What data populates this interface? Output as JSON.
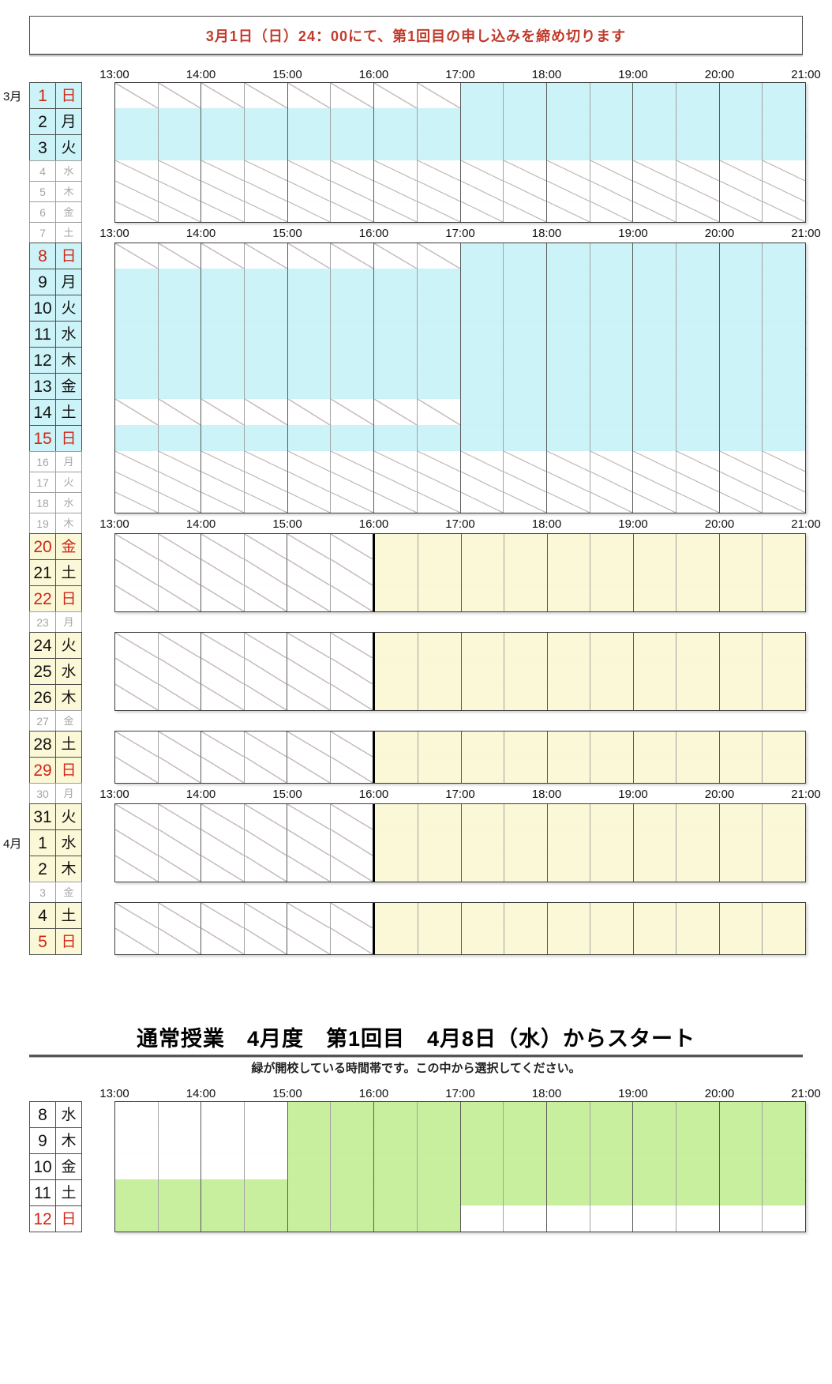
{
  "banner": {
    "text": "3月1日（日）24：00にて、第1回目の申し込みを締め切ります"
  },
  "colors": {
    "banner_red": "#c13a2c",
    "red": "#cf2618",
    "gray": "#a6a6a6",
    "black": "#111111",
    "cyan": "#ccf3f7",
    "yellow": "#faf8d6",
    "green": "#c8ef9d",
    "white": "#ffffff",
    "hatch_line": "#c9bdbd"
  },
  "time_header": {
    "labels": [
      "13:00",
      "14:00",
      "15:00",
      "16:00",
      "17:00",
      "18:00",
      "19:00",
      "20:00",
      "21:00"
    ]
  },
  "top_calendar": {
    "rows": [
      {
        "size": "header",
        "grid": "timeheader"
      },
      {
        "month": "3月",
        "day": "1",
        "weekday": "日",
        "size": "tall",
        "label_bg": "cyan",
        "num_color": "red",
        "wd_color": "red",
        "grid": "segments",
        "segments": [
          {
            "from": 13,
            "to": 17,
            "fill": "hatch"
          },
          {
            "from": 17,
            "to": 21,
            "fill": "cyan"
          }
        ]
      },
      {
        "day": "2",
        "weekday": "月",
        "size": "tall",
        "label_bg": "cyan",
        "num_color": "black",
        "wd_color": "black",
        "grid": "segments",
        "segments": [
          {
            "from": 13,
            "to": 21,
            "fill": "cyan"
          }
        ]
      },
      {
        "day": "3",
        "weekday": "火",
        "size": "tall",
        "label_bg": "cyan",
        "num_color": "black",
        "wd_color": "black",
        "grid": "segments",
        "segments": [
          {
            "from": 13,
            "to": 21,
            "fill": "cyan"
          }
        ]
      },
      {
        "day": "4",
        "weekday": "水",
        "size": "thin",
        "label_bg": "white",
        "num_color": "gray",
        "wd_color": "gray",
        "grid": "segments",
        "segments": [
          {
            "from": 13,
            "to": 21,
            "fill": "hatch"
          }
        ]
      },
      {
        "day": "5",
        "weekday": "木",
        "size": "thin",
        "label_bg": "white",
        "num_color": "gray",
        "wd_color": "gray",
        "grid": "segments",
        "segments": [
          {
            "from": 13,
            "to": 21,
            "fill": "hatch"
          }
        ]
      },
      {
        "day": "6",
        "weekday": "金",
        "size": "thin",
        "label_bg": "white",
        "num_color": "gray",
        "wd_color": "gray",
        "grid": "segments",
        "segments": [
          {
            "from": 13,
            "to": 21,
            "fill": "hatch"
          }
        ]
      },
      {
        "day": "7",
        "weekday": "土",
        "size": "thin",
        "label_bg": "white",
        "num_color": "gray",
        "wd_color": "gray",
        "grid": "timeheader"
      },
      {
        "day": "8",
        "weekday": "日",
        "size": "tall",
        "label_bg": "cyan",
        "num_color": "red",
        "wd_color": "red",
        "grid": "segments",
        "segments": [
          {
            "from": 13,
            "to": 17,
            "fill": "hatch"
          },
          {
            "from": 17,
            "to": 21,
            "fill": "cyan"
          }
        ]
      },
      {
        "day": "9",
        "weekday": "月",
        "size": "tall",
        "label_bg": "cyan",
        "num_color": "black",
        "wd_color": "black",
        "grid": "segments",
        "segments": [
          {
            "from": 13,
            "to": 21,
            "fill": "cyan"
          }
        ]
      },
      {
        "day": "10",
        "weekday": "火",
        "size": "tall",
        "label_bg": "cyan",
        "num_color": "black",
        "wd_color": "black",
        "grid": "segments",
        "segments": [
          {
            "from": 13,
            "to": 21,
            "fill": "cyan"
          }
        ]
      },
      {
        "day": "11",
        "weekday": "水",
        "size": "tall",
        "label_bg": "cyan",
        "num_color": "black",
        "wd_color": "black",
        "grid": "segments",
        "segments": [
          {
            "from": 13,
            "to": 21,
            "fill": "cyan"
          }
        ]
      },
      {
        "day": "12",
        "weekday": "木",
        "size": "tall",
        "label_bg": "cyan",
        "num_color": "black",
        "wd_color": "black",
        "grid": "segments",
        "segments": [
          {
            "from": 13,
            "to": 21,
            "fill": "cyan"
          }
        ]
      },
      {
        "day": "13",
        "weekday": "金",
        "size": "tall",
        "label_bg": "cyan",
        "num_color": "black",
        "wd_color": "black",
        "grid": "segments",
        "segments": [
          {
            "from": 13,
            "to": 21,
            "fill": "cyan"
          }
        ]
      },
      {
        "day": "14",
        "weekday": "土",
        "size": "tall",
        "label_bg": "cyan",
        "num_color": "black",
        "wd_color": "black",
        "grid": "segments",
        "segments": [
          {
            "from": 13,
            "to": 17,
            "fill": "hatch"
          },
          {
            "from": 17,
            "to": 21,
            "fill": "cyan"
          }
        ]
      },
      {
        "day": "15",
        "weekday": "日",
        "size": "tall",
        "label_bg": "cyan",
        "num_color": "red",
        "wd_color": "red",
        "grid": "segments",
        "segments": [
          {
            "from": 13,
            "to": 21,
            "fill": "cyan"
          }
        ]
      },
      {
        "day": "16",
        "weekday": "月",
        "size": "thin",
        "label_bg": "white",
        "num_color": "gray",
        "wd_color": "gray",
        "grid": "segments",
        "segments": [
          {
            "from": 13,
            "to": 21,
            "fill": "hatch"
          }
        ]
      },
      {
        "day": "17",
        "weekday": "火",
        "size": "thin",
        "label_bg": "white",
        "num_color": "gray",
        "wd_color": "gray",
        "grid": "segments",
        "segments": [
          {
            "from": 13,
            "to": 21,
            "fill": "hatch"
          }
        ]
      },
      {
        "day": "18",
        "weekday": "水",
        "size": "thin",
        "label_bg": "white",
        "num_color": "gray",
        "wd_color": "gray",
        "grid": "segments",
        "segments": [
          {
            "from": 13,
            "to": 21,
            "fill": "hatch"
          }
        ]
      },
      {
        "day": "19",
        "weekday": "木",
        "size": "thin",
        "label_bg": "white",
        "num_color": "gray",
        "wd_color": "gray",
        "grid": "timeheader"
      },
      {
        "day": "20",
        "weekday": "金",
        "size": "tall",
        "label_bg": "yellow",
        "num_color": "red",
        "wd_color": "red",
        "grid": "segments",
        "segments": [
          {
            "from": 13,
            "to": 16,
            "fill": "hatch"
          },
          {
            "from": 16,
            "to": 21,
            "fill": "yellow",
            "divider": true
          }
        ]
      },
      {
        "day": "21",
        "weekday": "土",
        "size": "tall",
        "label_bg": "yellow",
        "num_color": "black",
        "wd_color": "black",
        "grid": "segments",
        "segments": [
          {
            "from": 13,
            "to": 16,
            "fill": "hatch"
          },
          {
            "from": 16,
            "to": 21,
            "fill": "yellow",
            "divider": true
          }
        ]
      },
      {
        "day": "22",
        "weekday": "日",
        "size": "tall",
        "label_bg": "yellow",
        "num_color": "red",
        "wd_color": "red",
        "grid": "segments",
        "segments": [
          {
            "from": 13,
            "to": 16,
            "fill": "hatch"
          },
          {
            "from": 16,
            "to": 21,
            "fill": "yellow",
            "divider": true
          }
        ]
      },
      {
        "day": "23",
        "weekday": "月",
        "size": "thin",
        "label_bg": "white",
        "num_color": "gray",
        "wd_color": "gray",
        "grid": "empty"
      },
      {
        "day": "24",
        "weekday": "火",
        "size": "tall",
        "label_bg": "yellow",
        "num_color": "black",
        "wd_color": "black",
        "grid": "segments",
        "segments": [
          {
            "from": 13,
            "to": 16,
            "fill": "hatch"
          },
          {
            "from": 16,
            "to": 21,
            "fill": "yellow",
            "divider": true
          }
        ]
      },
      {
        "day": "25",
        "weekday": "水",
        "size": "tall",
        "label_bg": "yellow",
        "num_color": "black",
        "wd_color": "black",
        "grid": "segments",
        "segments": [
          {
            "from": 13,
            "to": 16,
            "fill": "hatch"
          },
          {
            "from": 16,
            "to": 21,
            "fill": "yellow",
            "divider": true
          }
        ]
      },
      {
        "day": "26",
        "weekday": "木",
        "size": "tall",
        "label_bg": "yellow",
        "num_color": "black",
        "wd_color": "black",
        "grid": "segments",
        "segments": [
          {
            "from": 13,
            "to": 16,
            "fill": "hatch"
          },
          {
            "from": 16,
            "to": 21,
            "fill": "yellow",
            "divider": true
          }
        ]
      },
      {
        "day": "27",
        "weekday": "金",
        "size": "thin",
        "label_bg": "white",
        "num_color": "gray",
        "wd_color": "gray",
        "grid": "empty"
      },
      {
        "day": "28",
        "weekday": "土",
        "size": "tall",
        "label_bg": "yellow",
        "num_color": "black",
        "wd_color": "black",
        "grid": "segments",
        "segments": [
          {
            "from": 13,
            "to": 16,
            "fill": "hatch"
          },
          {
            "from": 16,
            "to": 21,
            "fill": "yellow",
            "divider": true
          }
        ]
      },
      {
        "day": "29",
        "weekday": "日",
        "size": "tall",
        "label_bg": "yellow",
        "num_color": "red",
        "wd_color": "red",
        "grid": "segments",
        "segments": [
          {
            "from": 13,
            "to": 16,
            "fill": "hatch"
          },
          {
            "from": 16,
            "to": 21,
            "fill": "yellow",
            "divider": true
          }
        ]
      },
      {
        "day": "30",
        "weekday": "月",
        "size": "thin",
        "label_bg": "white",
        "num_color": "gray",
        "wd_color": "gray",
        "grid": "timeheader"
      },
      {
        "day": "31",
        "weekday": "火",
        "size": "tall",
        "label_bg": "yellow",
        "num_color": "black",
        "wd_color": "black",
        "grid": "segments",
        "segments": [
          {
            "from": 13,
            "to": 16,
            "fill": "hatch"
          },
          {
            "from": 16,
            "to": 21,
            "fill": "yellow",
            "divider": true
          }
        ]
      },
      {
        "month": "4月",
        "day": "1",
        "weekday": "水",
        "size": "tall",
        "label_bg": "yellow",
        "num_color": "black",
        "wd_color": "black",
        "grid": "segments",
        "segments": [
          {
            "from": 13,
            "to": 16,
            "fill": "hatch"
          },
          {
            "from": 16,
            "to": 21,
            "fill": "yellow",
            "divider": true
          }
        ]
      },
      {
        "day": "2",
        "weekday": "木",
        "size": "tall",
        "label_bg": "yellow",
        "num_color": "black",
        "wd_color": "black",
        "grid": "segments",
        "segments": [
          {
            "from": 13,
            "to": 16,
            "fill": "hatch"
          },
          {
            "from": 16,
            "to": 21,
            "fill": "yellow",
            "divider": true
          }
        ]
      },
      {
        "day": "3",
        "weekday": "金",
        "size": "thin",
        "label_bg": "white",
        "num_color": "gray",
        "wd_color": "gray",
        "grid": "empty"
      },
      {
        "day": "4",
        "weekday": "土",
        "size": "tall",
        "label_bg": "yellow",
        "num_color": "black",
        "wd_color": "black",
        "grid": "segments",
        "segments": [
          {
            "from": 13,
            "to": 16,
            "fill": "hatch"
          },
          {
            "from": 16,
            "to": 21,
            "fill": "yellow",
            "divider": true
          }
        ]
      },
      {
        "day": "5",
        "weekday": "日",
        "size": "tall",
        "label_bg": "yellow",
        "num_color": "red",
        "wd_color": "red",
        "grid": "segments",
        "segments": [
          {
            "from": 13,
            "to": 16,
            "fill": "hatch"
          },
          {
            "from": 16,
            "to": 21,
            "fill": "yellow",
            "divider": true
          }
        ]
      }
    ]
  },
  "bottom_section": {
    "title": "通常授業　4月度　第1回目　4月8日（水）からスタート",
    "subtitle": "緑が開校している時間帯です。この中から選択してください。",
    "rows": [
      {
        "size": "header",
        "grid": "timeheader"
      },
      {
        "day": "8",
        "weekday": "水",
        "size": "tall",
        "label_bg": "white",
        "num_color": "black",
        "wd_color": "black",
        "grid": "segments",
        "segments": [
          {
            "from": 13,
            "to": 15,
            "fill": "white"
          },
          {
            "from": 15,
            "to": 21,
            "fill": "green"
          }
        ]
      },
      {
        "day": "9",
        "weekday": "木",
        "size": "tall",
        "label_bg": "white",
        "num_color": "black",
        "wd_color": "black",
        "grid": "segments",
        "segments": [
          {
            "from": 13,
            "to": 15,
            "fill": "white"
          },
          {
            "from": 15,
            "to": 21,
            "fill": "green"
          }
        ]
      },
      {
        "day": "10",
        "weekday": "金",
        "size": "tall",
        "label_bg": "white",
        "num_color": "black",
        "wd_color": "black",
        "grid": "segments",
        "segments": [
          {
            "from": 13,
            "to": 15,
            "fill": "white"
          },
          {
            "from": 15,
            "to": 21,
            "fill": "green"
          }
        ]
      },
      {
        "day": "11",
        "weekday": "土",
        "size": "tall",
        "label_bg": "white",
        "num_color": "black",
        "wd_color": "black",
        "grid": "segments",
        "segments": [
          {
            "from": 13,
            "to": 21,
            "fill": "green"
          }
        ]
      },
      {
        "day": "12",
        "weekday": "日",
        "size": "tall",
        "label_bg": "white",
        "num_color": "red",
        "wd_color": "red",
        "grid": "segments",
        "segments": [
          {
            "from": 13,
            "to": 17,
            "fill": "green"
          },
          {
            "from": 17,
            "to": 21,
            "fill": "white"
          }
        ]
      }
    ]
  }
}
